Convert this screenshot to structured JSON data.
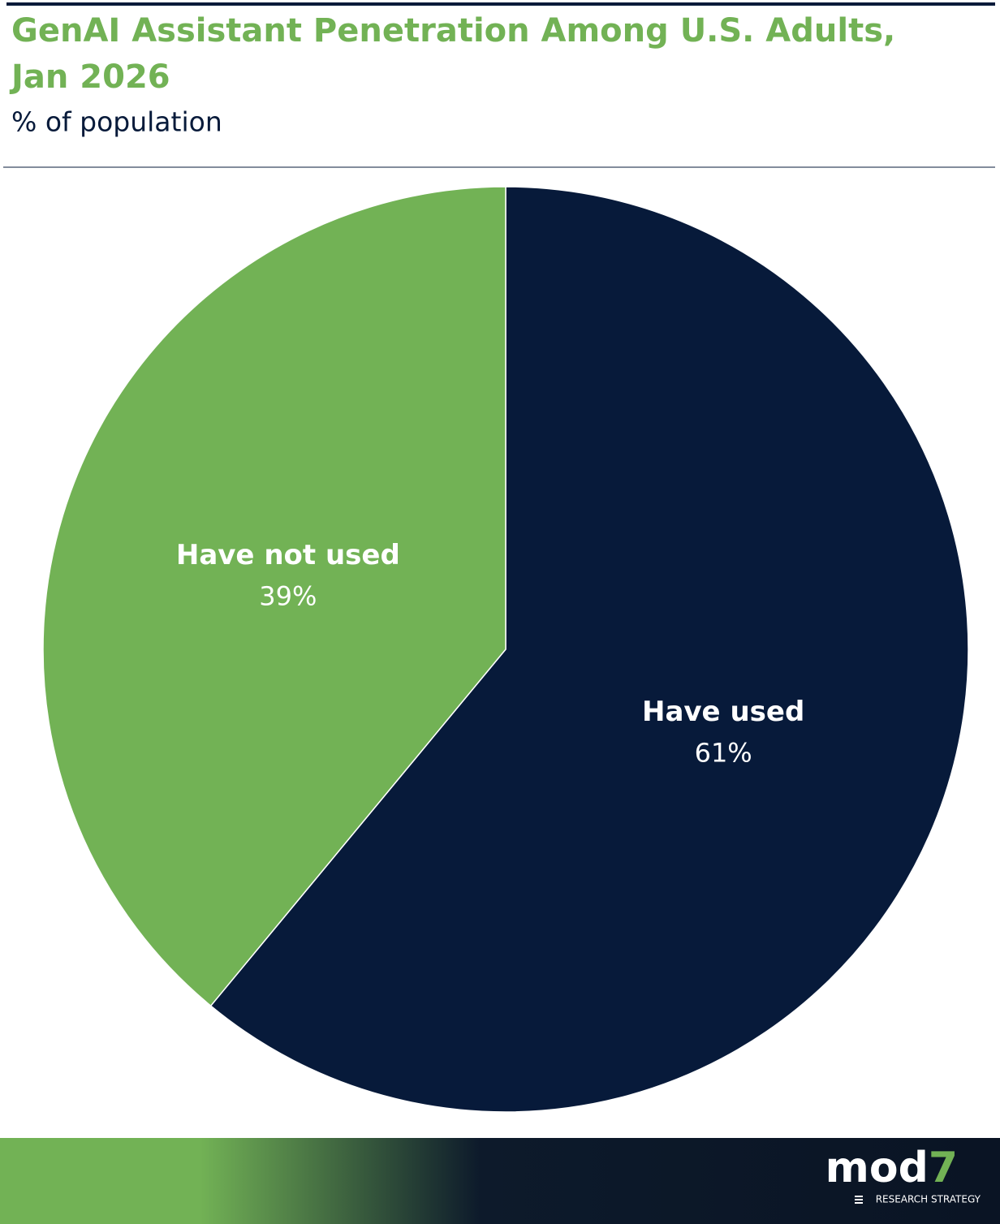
{
  "chart_data": {
    "type": "pie",
    "title": "GenAI Assistant Penetration Among U.S. Adults, Jan 2026",
    "subtitle": "% of population",
    "categories": [
      "Have used",
      "Have not used"
    ],
    "values": [
      61,
      39
    ],
    "value_labels": [
      "61%",
      "39%"
    ],
    "colors": [
      "#071a3a",
      "#72b255"
    ]
  },
  "footer": {
    "logo_text": "mod",
    "logo_digit": "7",
    "tagline": "RESEARCH STRATEGY"
  }
}
